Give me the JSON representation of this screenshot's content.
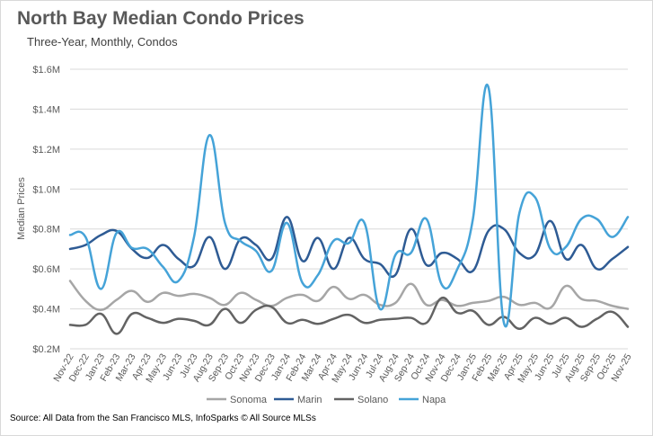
{
  "header": {
    "title": "North Bay Median Condo Prices",
    "subtitle": "Three-Year, Monthly, Condos"
  },
  "footer": {
    "source": "Source: All Data from the San Francisco MLS, InfoSparks © All Source MLSs"
  },
  "chart_data": {
    "type": "line",
    "title": "North Bay Median Condo Prices",
    "subtitle": "Three-Year, Monthly, Condos",
    "xlabel": "",
    "ylabel": "Median Prices",
    "ylim": [
      200000,
      1600000
    ],
    "yticks": [
      200000,
      400000,
      600000,
      800000,
      1000000,
      1200000,
      1400000,
      1600000
    ],
    "ytick_labels": [
      "$0.2M",
      "$0.4M",
      "$0.6M",
      "$0.8M",
      "$1.0M",
      "$1.2M",
      "$1.4M",
      "$1.6M"
    ],
    "grid": true,
    "legend_position": "bottom",
    "categories": [
      "Nov-22",
      "Dec-22",
      "Jan-23",
      "Feb-23",
      "Mar-23",
      "Apr-23",
      "May-23",
      "Jun-23",
      "Jul-23",
      "Aug-23",
      "Sep-23",
      "Oct-23",
      "Nov-23",
      "Dec-23",
      "Jan-24",
      "Feb-24",
      "Mar-24",
      "Apr-24",
      "May-24",
      "Jun-24",
      "Jul-24",
      "Aug-24",
      "Sep-24",
      "Oct-24",
      "Nov-24",
      "Dec-24",
      "Jan-25",
      "Feb-25",
      "Mar-25",
      "Apr-25",
      "May-25",
      "Jun-25",
      "Jul-25",
      "Aug-25",
      "Sep-25",
      "Oct-25",
      "Nov-25"
    ],
    "series": [
      {
        "name": "Sonoma",
        "color": "#a6a6a6",
        "values": [
          540000,
          440000,
          395000,
          445000,
          490000,
          435000,
          480000,
          465000,
          475000,
          455000,
          420000,
          480000,
          445000,
          415000,
          455000,
          470000,
          440000,
          510000,
          450000,
          470000,
          420000,
          430000,
          525000,
          420000,
          445000,
          415000,
          430000,
          440000,
          460000,
          420000,
          430000,
          405000,
          515000,
          450000,
          440000,
          415000,
          400000
        ]
      },
      {
        "name": "Marin",
        "color": "#2e5b94",
        "values": [
          700000,
          720000,
          770000,
          790000,
          700000,
          655000,
          720000,
          650000,
          615000,
          760000,
          600000,
          750000,
          720000,
          650000,
          860000,
          640000,
          755000,
          600000,
          755000,
          650000,
          625000,
          570000,
          800000,
          620000,
          680000,
          650000,
          590000,
          790000,
          800000,
          680000,
          670000,
          840000,
          650000,
          720000,
          600000,
          650000,
          710000
        ]
      },
      {
        "name": "Solano",
        "color": "#636363",
        "values": [
          320000,
          320000,
          375000,
          275000,
          375000,
          355000,
          330000,
          350000,
          340000,
          320000,
          400000,
          330000,
          395000,
          410000,
          330000,
          345000,
          325000,
          350000,
          370000,
          330000,
          345000,
          350000,
          355000,
          330000,
          455000,
          380000,
          390000,
          320000,
          360000,
          300000,
          355000,
          325000,
          355000,
          310000,
          350000,
          385000,
          310000
        ]
      },
      {
        "name": "Napa",
        "color": "#45a3d8",
        "values": [
          770000,
          760000,
          500000,
          780000,
          705000,
          700000,
          610000,
          540000,
          760000,
          1270000,
          830000,
          740000,
          690000,
          590000,
          830000,
          530000,
          570000,
          740000,
          730000,
          830000,
          400000,
          670000,
          680000,
          850000,
          520000,
          600000,
          850000,
          1510000,
          330000,
          880000,
          960000,
          700000,
          710000,
          850000,
          850000,
          760000,
          860000
        ]
      }
    ]
  }
}
